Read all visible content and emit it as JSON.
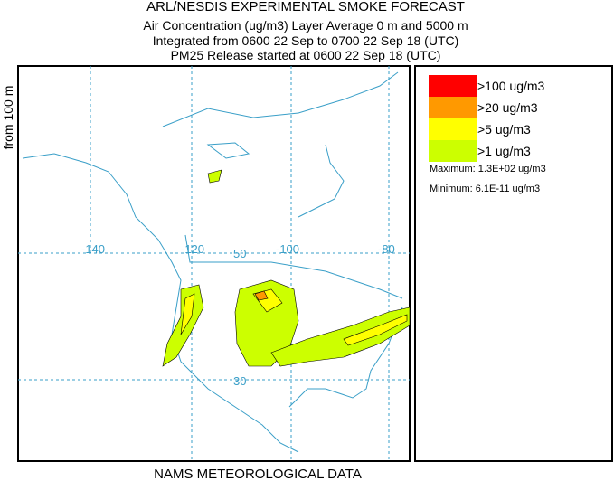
{
  "header": {
    "lines": [
      "ARL/NESDIS EXPERIMENTAL SMOKE FORECAST",
      "Air Concentration (ug/m3) Layer Average    0 m and  5000 m",
      "Integrated from 0600 22 Sep to 0700 22 Sep 18 (UTC)",
      "PM25 Release started at 0600 22 Sep 18 (UTC)"
    ]
  },
  "side_label": "from  100 m",
  "footer": "NAMS METEOROLOGICAL DATA",
  "map": {
    "graticule_labels": [
      "-140",
      "-120",
      "-100",
      "-80",
      "50",
      "30"
    ]
  },
  "legend": {
    "entries": [
      {
        "label": ">100 ug/m3",
        "color": "#ff0000"
      },
      {
        "label": ">20 ug/m3",
        "color": "#ff9900"
      },
      {
        "label": ">5 ug/m3",
        "color": "#ffff00"
      },
      {
        "label": ">1 ug/m3",
        "color": "#ccff00"
      }
    ],
    "maximum": "Maximum: 1.3E+02 ug/m3",
    "minimum": "Minimum: 6.1E-11 ug/m3"
  }
}
